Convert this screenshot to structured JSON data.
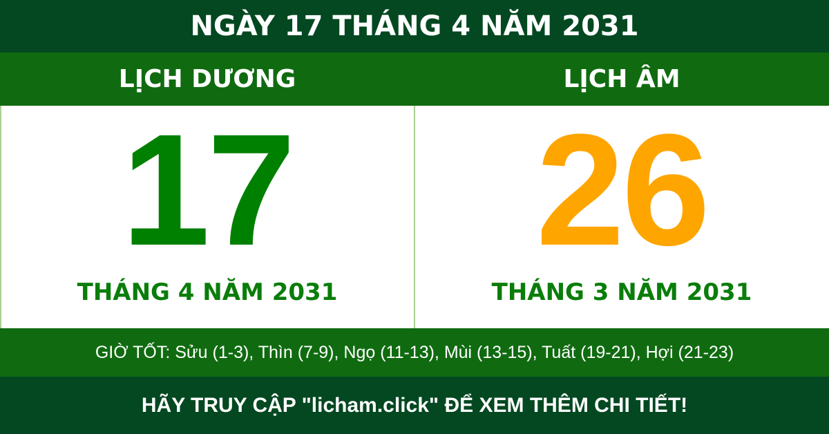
{
  "title": "NGÀY 17 THÁNG 4 NĂM 2031",
  "solar": {
    "label": "LỊCH DƯƠNG",
    "day": "17",
    "month_year": "THÁNG 4 NĂM 2031",
    "color": "#008000"
  },
  "lunar": {
    "label": "LỊCH ÂM",
    "day": "26",
    "month_year": "THÁNG 3 NĂM 2031",
    "color": "#FFA500"
  },
  "good_hours": "GIỜ TỐT: Sửu (1-3), Thìn (7-9), Ngọ (11-13), Mùi (13-15), Tuất (19-21), Hợi (21-23)",
  "footer": "HÃY TRUY CẬP \"licham.click\" ĐỂ XEM THÊM CHI TIẾT!",
  "colors": {
    "dark_green": "#034821",
    "band_green": "#106b10"
  }
}
